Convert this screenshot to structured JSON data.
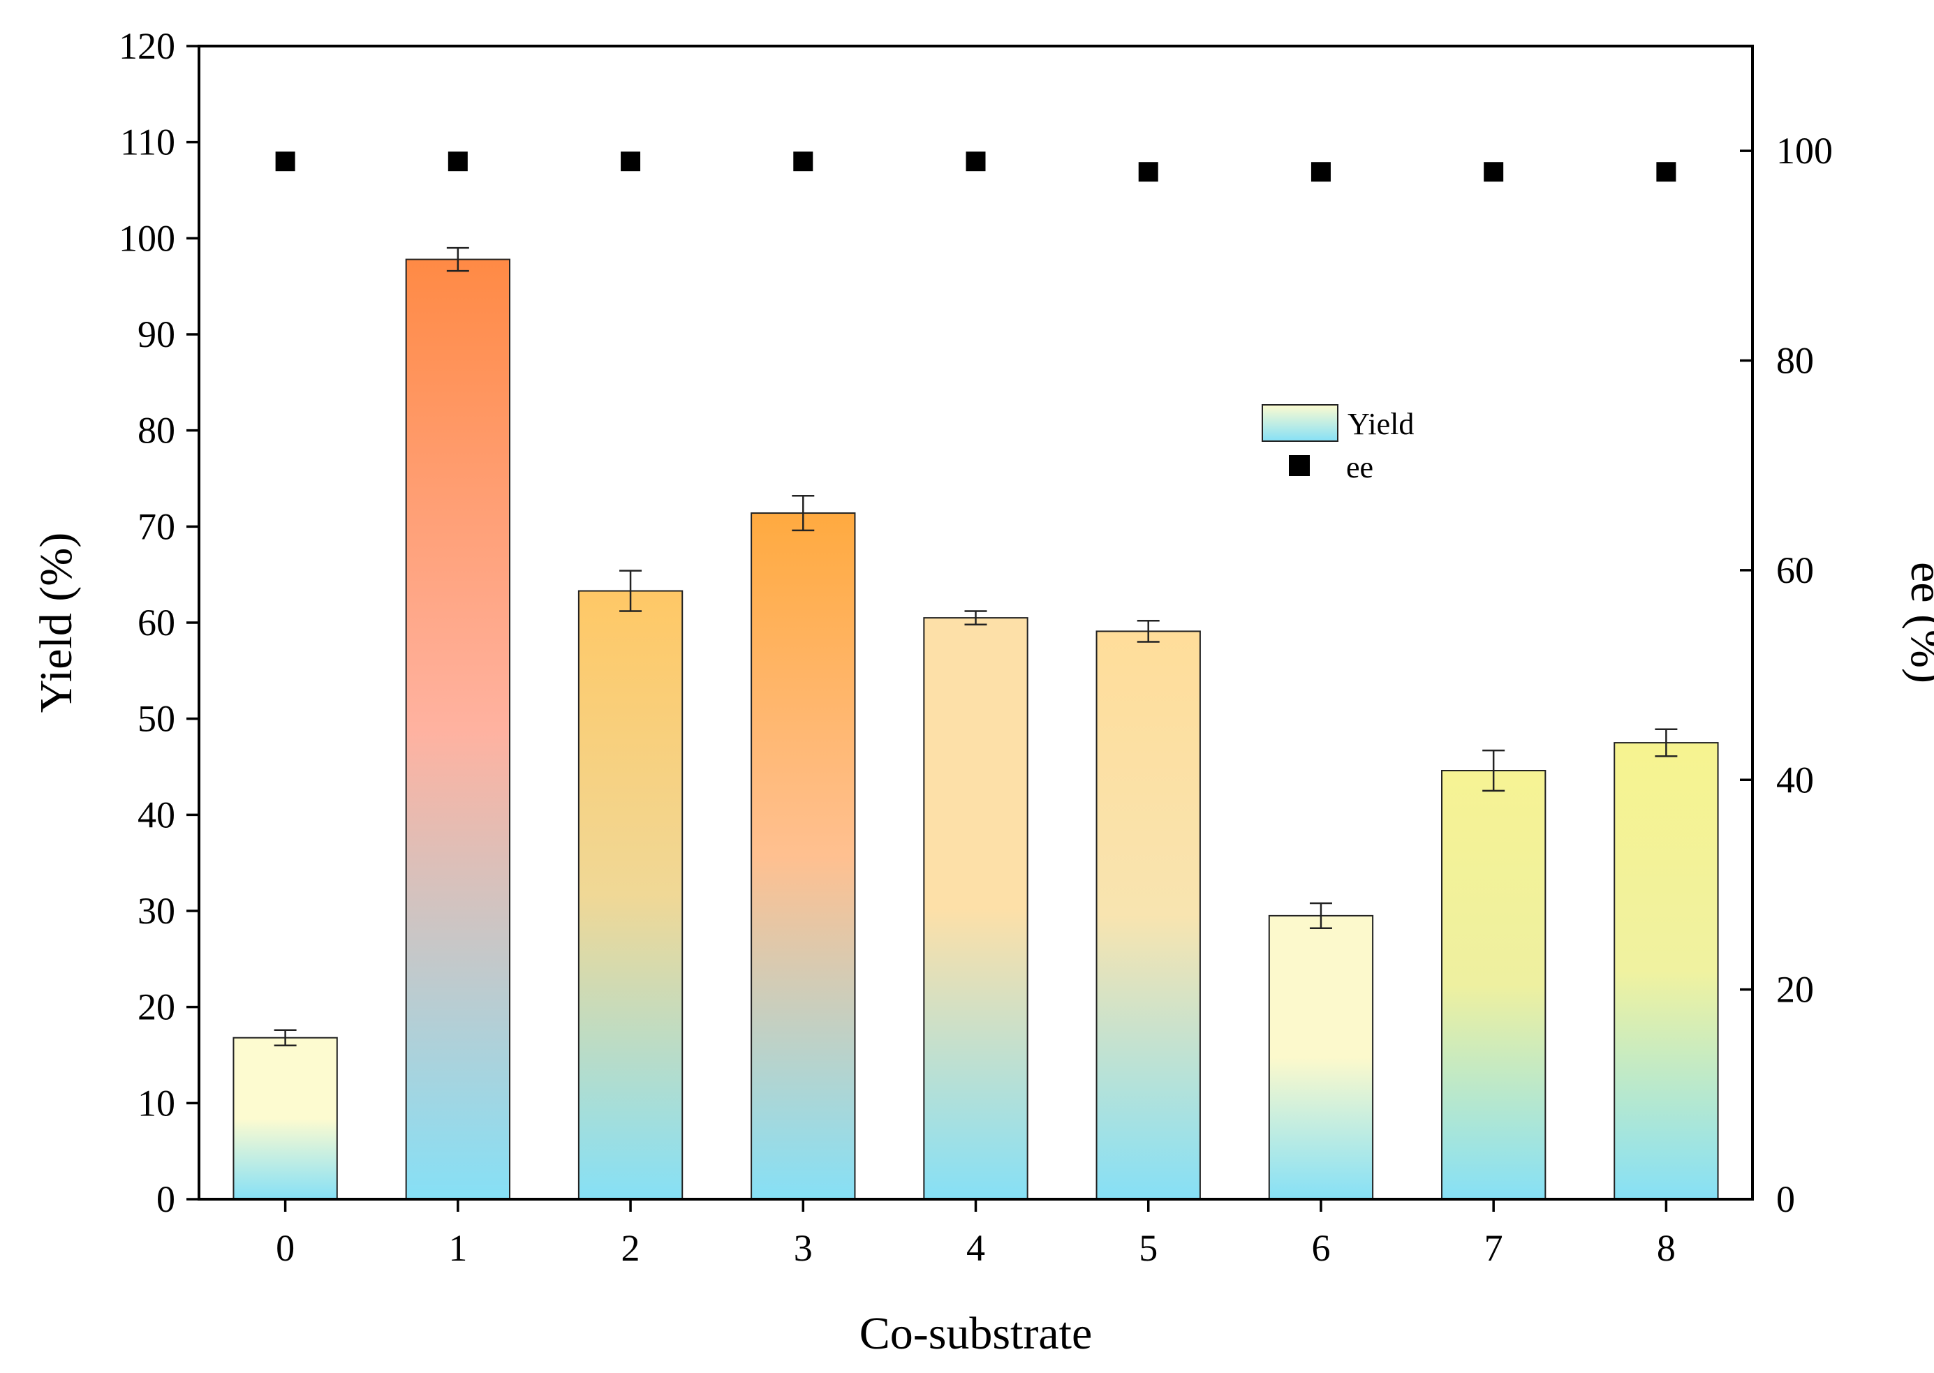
{
  "chart_data": {
    "type": "bar",
    "title": "",
    "xlabel": "Co-substrate",
    "ylabel": "Yield (%)",
    "y2label": "ee (%)",
    "categories": [
      "0",
      "1",
      "2",
      "3",
      "4",
      "5",
      "6",
      "7",
      "8"
    ],
    "ylim": [
      0,
      120
    ],
    "y_ticks": [
      0,
      10,
      20,
      30,
      40,
      50,
      60,
      70,
      80,
      90,
      100,
      110,
      120
    ],
    "y2lim": [
      0,
      110
    ],
    "y2_ticks": [
      0,
      20,
      40,
      60,
      80,
      100
    ],
    "grid": false,
    "legend_position": "upper-right",
    "series": [
      {
        "name": "Yield",
        "kind": "bar",
        "axis": "left",
        "values": [
          16.8,
          97.8,
          63.3,
          71.4,
          60.5,
          59.1,
          29.5,
          44.6,
          47.5
        ],
        "errors": [
          0.8,
          1.2,
          2.1,
          1.8,
          0.7,
          1.1,
          1.3,
          2.1,
          1.4
        ]
      },
      {
        "name": "ee",
        "kind": "scatter",
        "axis": "right",
        "marker": "square",
        "values": [
          99,
          99,
          99,
          99,
          99,
          98,
          98,
          98,
          98
        ]
      }
    ],
    "bar_gradients": [
      [
        "#fdfbd0",
        "#fdfbd0",
        "#86e0f6"
      ],
      [
        "#ff8a45",
        "#ffb2a0",
        "#86e0f6"
      ],
      [
        "#ffc866",
        "#f0d896",
        "#86e0f6"
      ],
      [
        "#ffaa40",
        "#ffc090",
        "#86e0f6"
      ],
      [
        "#fde0a8",
        "#fde0a8",
        "#86e0f6"
      ],
      [
        "#ffdd9a",
        "#f8e4b0",
        "#86e0f6"
      ],
      [
        "#fcf9cc",
        "#fcf9cc",
        "#86e0f6"
      ],
      [
        "#f6f394",
        "#eef0a0",
        "#86e0f6"
      ],
      [
        "#f6f390",
        "#f0f2a0",
        "#86e0f6"
      ]
    ],
    "legend_gradient": [
      "#fdfbd0",
      "#86e0f6"
    ],
    "colors": {
      "axis": "#000000",
      "marker": "#000000",
      "bar_edge": "#222222"
    }
  }
}
